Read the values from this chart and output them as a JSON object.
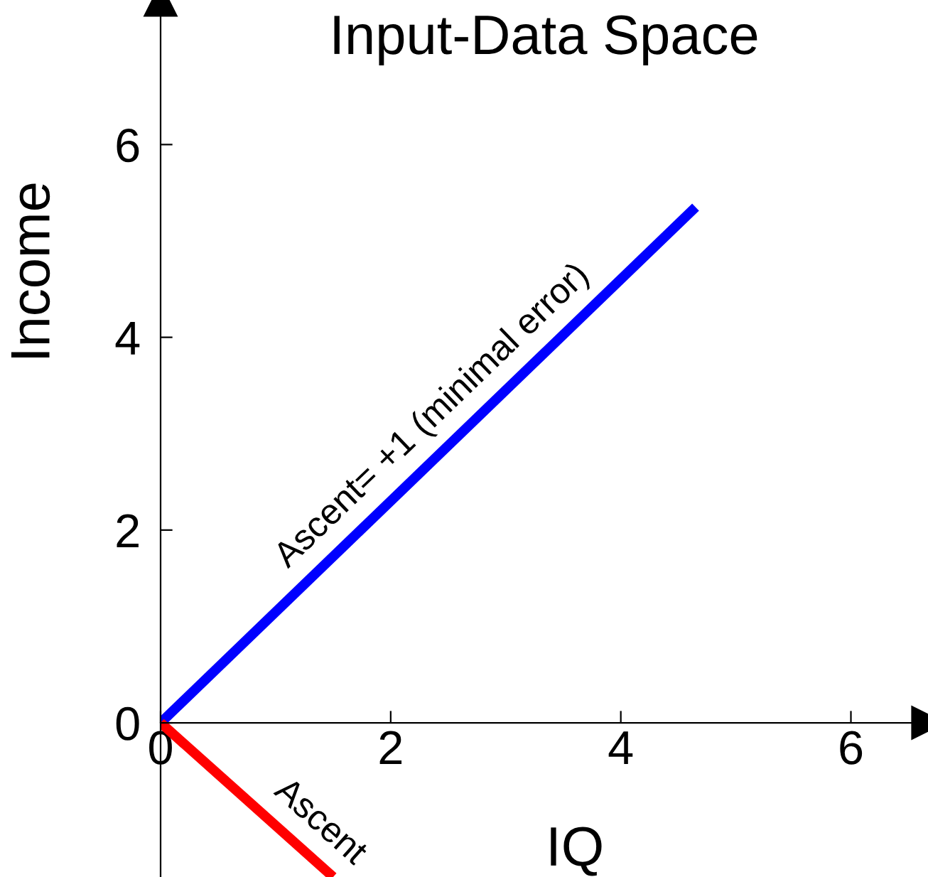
{
  "chart_data": {
    "type": "line",
    "title": "Input-Data Space",
    "xlabel": "IQ",
    "ylabel": "Income",
    "series": [
      {
        "color": "#0000ff",
        "x": [
          0,
          4.65
        ],
        "values": [
          0,
          5.35
        ]
      },
      {
        "color": "#ff0000",
        "x": [
          0,
          1.5
        ],
        "values": [
          0,
          -1.6
        ]
      }
    ],
    "annotations": [
      "Ascent= +1 (minimal error)",
      "Ascent"
    ],
    "xlim": [
      0,
      6.67
    ],
    "ylim": [
      -1.6,
      7.5
    ],
    "xticks": [
      0,
      2,
      4,
      6
    ],
    "yticks": [
      0,
      2,
      4,
      6
    ],
    "grid": false
  }
}
